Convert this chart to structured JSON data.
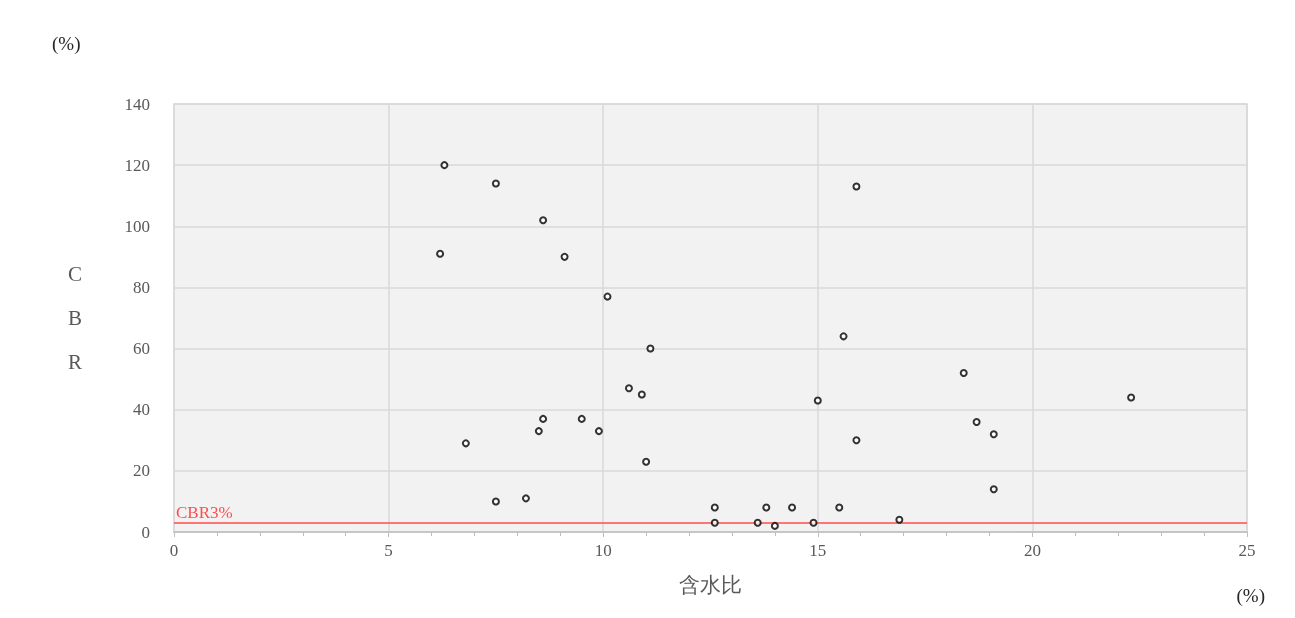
{
  "chart_data": {
    "type": "scatter",
    "xlabel": "含水比",
    "ylabel": "CBR",
    "annotations": [
      "(%)",
      "(%)"
    ],
    "x": [
      6.3,
      7.5,
      8.6,
      6.2,
      9.1,
      10.1,
      11.1,
      10.6,
      10.9,
      8.6,
      9.5,
      8.5,
      9.9,
      6.8,
      11.0,
      7.5,
      8.2,
      12.6,
      12.6,
      13.8,
      14.4,
      15.5,
      13.6,
      14.0,
      14.9,
      16.9,
      15.9,
      15.6,
      15.0,
      15.9,
      18.4,
      18.7,
      19.1,
      19.1,
      22.3
    ],
    "series": [
      {
        "color": "#000000",
        "values": [
          120,
          114,
          102,
          91,
          90,
          77,
          60,
          47,
          45,
          37,
          37,
          33,
          33,
          29,
          23,
          10,
          11,
          8,
          3,
          8,
          8,
          8,
          3,
          2,
          3,
          4,
          113,
          64,
          43,
          30,
          52,
          36,
          32,
          14,
          44
        ]
      }
    ],
    "xlim": [
      0,
      25
    ],
    "xticks": [
      0,
      5,
      10,
      15,
      20,
      25
    ],
    "ylim": [
      0,
      140
    ],
    "yticks": [
      0,
      20,
      40,
      60,
      80,
      100,
      120,
      140
    ],
    "ref_lines": [
      {
        "axis": "y",
        "value": 3,
        "label": "CBR3%",
        "color": "#ff4d4d"
      }
    ],
    "grid": true,
    "marker": "circle"
  }
}
